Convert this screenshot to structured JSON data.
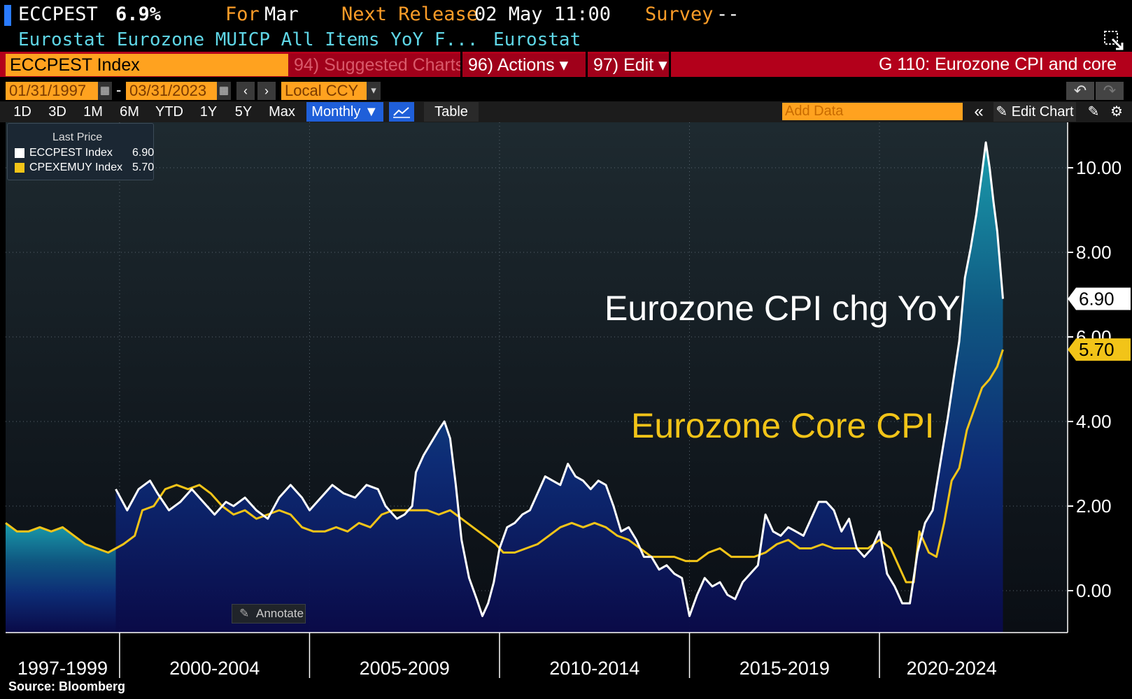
{
  "header": {
    "ticker": "ECCPEST",
    "last_value": "6.9%",
    "for_label": "For",
    "for_period": "Mar",
    "next_release_label": "Next Release",
    "next_release": "02 May 11:00",
    "survey_label": "Survey",
    "survey_value": "--",
    "description": "Eurostat Eurozone MUICP All Items YoY F...",
    "source_name": "Eurostat"
  },
  "toolbar": {
    "ticker_field": "ECCPEST Index",
    "suggested_charts": "94) Suggested Charts",
    "actions": "96) Actions ▾",
    "edit": "97) Edit ▾",
    "graph_title": "G 110: Eurozone CPI and core"
  },
  "range": {
    "start": "01/31/1997",
    "dash": "-",
    "end": "03/31/2023",
    "currency": "Local CCY"
  },
  "periods": [
    "1D",
    "3D",
    "1M",
    "6M",
    "YTD",
    "1Y",
    "5Y",
    "Max"
  ],
  "frequency": "Monthly ▼",
  "table_label": "Table",
  "add_data_placeholder": "Add Data",
  "edit_chart": "Edit Chart",
  "legend": {
    "header": "Last Price",
    "items": [
      {
        "name": "ECCPEST Index",
        "value": "6.90",
        "color": "#ffffff"
      },
      {
        "name": "CPEXEMUY Index",
        "value": "5.70",
        "color": "#f2c418"
      }
    ]
  },
  "annotations": {
    "cpi": "Eurozone CPI chg YoY",
    "core": "Eurozone Core CPI"
  },
  "annotate_button": "Annotate",
  "source": "Source:  Bloomberg",
  "chart_data": {
    "type": "line",
    "title": "G 110: Eurozone CPI and core",
    "ylim": [
      -1,
      11
    ],
    "yticks": [
      0,
      2,
      4,
      6,
      8,
      10
    ],
    "ytick_labels": [
      "0.00",
      "2.00",
      "4.00",
      "6.00",
      "8.00",
      "10.00"
    ],
    "x_range": [
      1997.0,
      2024.4
    ],
    "period_labels": [
      {
        "label": "1997-1999",
        "center": 1998.5
      },
      {
        "label": "2000-2004",
        "center": 2002.5
      },
      {
        "label": "2005-2009",
        "center": 2007.5
      },
      {
        "label": "2010-2014",
        "center": 2012.5
      },
      {
        "label": "2015-2019",
        "center": 2017.5
      },
      {
        "label": "2020-2024",
        "center": 2021.9
      }
    ],
    "period_dividers": [
      2000,
      2005,
      2010,
      2015,
      2020
    ],
    "last_values": [
      {
        "label": "6.90",
        "value": 6.9,
        "color": "#ffffff"
      },
      {
        "label": "5.70",
        "value": 5.7,
        "color": "#f2c418"
      }
    ],
    "series": [
      {
        "name": "ECCPEST Index",
        "label": "Eurozone CPI chg YoY",
        "color": "#ffffff",
        "points": [
          [
            1999.9,
            2.4
          ],
          [
            2000.2,
            1.9
          ],
          [
            2000.5,
            2.4
          ],
          [
            2000.8,
            2.6
          ],
          [
            2001.0,
            2.3
          ],
          [
            2001.3,
            1.9
          ],
          [
            2001.6,
            2.1
          ],
          [
            2001.9,
            2.4
          ],
          [
            2002.2,
            2.1
          ],
          [
            2002.5,
            1.8
          ],
          [
            2002.8,
            2.1
          ],
          [
            2003.0,
            2.0
          ],
          [
            2003.3,
            2.2
          ],
          [
            2003.6,
            1.9
          ],
          [
            2003.9,
            1.7
          ],
          [
            2004.2,
            2.2
          ],
          [
            2004.5,
            2.5
          ],
          [
            2004.8,
            2.2
          ],
          [
            2005.0,
            1.9
          ],
          [
            2005.3,
            2.2
          ],
          [
            2005.6,
            2.5
          ],
          [
            2005.9,
            2.3
          ],
          [
            2006.2,
            2.2
          ],
          [
            2006.5,
            2.5
          ],
          [
            2006.8,
            2.4
          ],
          [
            2007.0,
            2.0
          ],
          [
            2007.3,
            1.7
          ],
          [
            2007.5,
            1.8
          ],
          [
            2007.7,
            2.0
          ],
          [
            2007.8,
            2.8
          ],
          [
            2008.0,
            3.2
          ],
          [
            2008.2,
            3.5
          ],
          [
            2008.4,
            3.8
          ],
          [
            2008.55,
            4.0
          ],
          [
            2008.7,
            3.6
          ],
          [
            2008.85,
            2.5
          ],
          [
            2009.0,
            1.2
          ],
          [
            2009.2,
            0.3
          ],
          [
            2009.4,
            -0.2
          ],
          [
            2009.55,
            -0.6
          ],
          [
            2009.7,
            -0.3
          ],
          [
            2009.85,
            0.2
          ],
          [
            2010.0,
            1.0
          ],
          [
            2010.2,
            1.5
          ],
          [
            2010.4,
            1.6
          ],
          [
            2010.6,
            1.8
          ],
          [
            2010.8,
            1.9
          ],
          [
            2011.0,
            2.3
          ],
          [
            2011.2,
            2.7
          ],
          [
            2011.4,
            2.6
          ],
          [
            2011.6,
            2.5
          ],
          [
            2011.8,
            3.0
          ],
          [
            2012.0,
            2.7
          ],
          [
            2012.2,
            2.6
          ],
          [
            2012.4,
            2.4
          ],
          [
            2012.6,
            2.6
          ],
          [
            2012.8,
            2.5
          ],
          [
            2013.0,
            2.0
          ],
          [
            2013.2,
            1.4
          ],
          [
            2013.4,
            1.5
          ],
          [
            2013.6,
            1.2
          ],
          [
            2013.8,
            0.8
          ],
          [
            2014.0,
            0.8
          ],
          [
            2014.2,
            0.5
          ],
          [
            2014.4,
            0.6
          ],
          [
            2014.6,
            0.4
          ],
          [
            2014.8,
            0.3
          ],
          [
            2015.0,
            -0.6
          ],
          [
            2015.2,
            -0.1
          ],
          [
            2015.4,
            0.3
          ],
          [
            2015.6,
            0.1
          ],
          [
            2015.8,
            0.2
          ],
          [
            2016.0,
            -0.1
          ],
          [
            2016.2,
            -0.2
          ],
          [
            2016.4,
            0.2
          ],
          [
            2016.6,
            0.4
          ],
          [
            2016.8,
            0.6
          ],
          [
            2017.0,
            1.8
          ],
          [
            2017.2,
            1.4
          ],
          [
            2017.4,
            1.3
          ],
          [
            2017.6,
            1.5
          ],
          [
            2017.8,
            1.4
          ],
          [
            2018.0,
            1.3
          ],
          [
            2018.2,
            1.7
          ],
          [
            2018.4,
            2.1
          ],
          [
            2018.6,
            2.1
          ],
          [
            2018.8,
            1.9
          ],
          [
            2019.0,
            1.4
          ],
          [
            2019.2,
            1.7
          ],
          [
            2019.4,
            1.0
          ],
          [
            2019.6,
            0.8
          ],
          [
            2019.8,
            1.0
          ],
          [
            2020.0,
            1.4
          ],
          [
            2020.2,
            0.4
          ],
          [
            2020.4,
            0.1
          ],
          [
            2020.6,
            -0.3
          ],
          [
            2020.8,
            -0.3
          ],
          [
            2021.0,
            0.9
          ],
          [
            2021.2,
            1.6
          ],
          [
            2021.4,
            1.9
          ],
          [
            2021.6,
            3.0
          ],
          [
            2021.8,
            4.1
          ],
          [
            2021.95,
            5.0
          ],
          [
            2022.1,
            5.9
          ],
          [
            2022.25,
            7.4
          ],
          [
            2022.4,
            8.1
          ],
          [
            2022.55,
            8.9
          ],
          [
            2022.7,
            9.9
          ],
          [
            2022.8,
            10.6
          ],
          [
            2022.9,
            10.0
          ],
          [
            2023.0,
            9.2
          ],
          [
            2023.1,
            8.5
          ],
          [
            2023.25,
            6.9
          ]
        ]
      },
      {
        "name": "CPEXEMUY Index",
        "label": "Eurozone Core CPI",
        "color": "#f2c418",
        "points": [
          [
            1997.0,
            1.6
          ],
          [
            1997.3,
            1.4
          ],
          [
            1997.6,
            1.4
          ],
          [
            1997.9,
            1.5
          ],
          [
            1998.2,
            1.4
          ],
          [
            1998.5,
            1.5
          ],
          [
            1998.8,
            1.3
          ],
          [
            1999.1,
            1.1
          ],
          [
            1999.4,
            1.0
          ],
          [
            1999.7,
            0.9
          ],
          [
            1999.9,
            1.0
          ],
          [
            2000.1,
            1.1
          ],
          [
            2000.4,
            1.3
          ],
          [
            2000.6,
            1.9
          ],
          [
            2000.9,
            2.0
          ],
          [
            2001.2,
            2.4
          ],
          [
            2001.5,
            2.5
          ],
          [
            2001.8,
            2.4
          ],
          [
            2002.1,
            2.5
          ],
          [
            2002.4,
            2.3
          ],
          [
            2002.7,
            2.0
          ],
          [
            2003.0,
            1.8
          ],
          [
            2003.3,
            1.9
          ],
          [
            2003.6,
            1.7
          ],
          [
            2003.9,
            1.8
          ],
          [
            2004.2,
            1.9
          ],
          [
            2004.5,
            1.8
          ],
          [
            2004.8,
            1.5
          ],
          [
            2005.1,
            1.4
          ],
          [
            2005.4,
            1.4
          ],
          [
            2005.7,
            1.5
          ],
          [
            2006.0,
            1.4
          ],
          [
            2006.3,
            1.6
          ],
          [
            2006.6,
            1.5
          ],
          [
            2006.9,
            1.8
          ],
          [
            2007.2,
            1.9
          ],
          [
            2007.5,
            1.9
          ],
          [
            2007.8,
            1.9
          ],
          [
            2008.1,
            1.9
          ],
          [
            2008.4,
            1.8
          ],
          [
            2008.7,
            1.9
          ],
          [
            2009.0,
            1.7
          ],
          [
            2009.3,
            1.5
          ],
          [
            2009.6,
            1.3
          ],
          [
            2009.9,
            1.1
          ],
          [
            2010.1,
            0.9
          ],
          [
            2010.4,
            0.9
          ],
          [
            2010.7,
            1.0
          ],
          [
            2011.0,
            1.1
          ],
          [
            2011.3,
            1.3
          ],
          [
            2011.6,
            1.5
          ],
          [
            2011.9,
            1.6
          ],
          [
            2012.2,
            1.5
          ],
          [
            2012.5,
            1.6
          ],
          [
            2012.8,
            1.5
          ],
          [
            2013.1,
            1.3
          ],
          [
            2013.4,
            1.2
          ],
          [
            2013.7,
            1.0
          ],
          [
            2014.0,
            0.8
          ],
          [
            2014.3,
            0.8
          ],
          [
            2014.6,
            0.8
          ],
          [
            2014.9,
            0.7
          ],
          [
            2015.2,
            0.7
          ],
          [
            2015.5,
            0.9
          ],
          [
            2015.8,
            1.0
          ],
          [
            2016.1,
            0.8
          ],
          [
            2016.4,
            0.8
          ],
          [
            2016.7,
            0.8
          ],
          [
            2017.0,
            0.9
          ],
          [
            2017.3,
            1.1
          ],
          [
            2017.6,
            1.2
          ],
          [
            2017.9,
            1.0
          ],
          [
            2018.2,
            1.0
          ],
          [
            2018.5,
            1.1
          ],
          [
            2018.8,
            1.0
          ],
          [
            2019.1,
            1.0
          ],
          [
            2019.4,
            1.0
          ],
          [
            2019.7,
            1.0
          ],
          [
            2020.0,
            1.2
          ],
          [
            2020.3,
            1.0
          ],
          [
            2020.5,
            0.6
          ],
          [
            2020.7,
            0.2
          ],
          [
            2020.9,
            0.2
          ],
          [
            2021.05,
            1.4
          ],
          [
            2021.3,
            0.9
          ],
          [
            2021.5,
            0.8
          ],
          [
            2021.7,
            1.6
          ],
          [
            2021.9,
            2.6
          ],
          [
            2022.1,
            2.9
          ],
          [
            2022.3,
            3.8
          ],
          [
            2022.5,
            4.3
          ],
          [
            2022.7,
            4.8
          ],
          [
            2022.9,
            5.0
          ],
          [
            2023.1,
            5.3
          ],
          [
            2023.25,
            5.7
          ]
        ]
      }
    ]
  }
}
